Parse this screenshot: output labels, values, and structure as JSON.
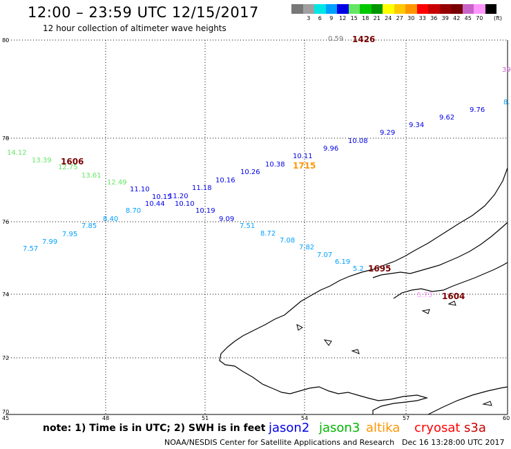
{
  "header": {
    "title": "12:00 – 23:59 UTC 12/15/2017",
    "subtitle": "12 hour collection of altimeter wave heights"
  },
  "scale": {
    "unit": "(ft)",
    "swatches": [
      {
        "label": "",
        "color": "#787878"
      },
      {
        "label": "3",
        "color": "#a0a0a0"
      },
      {
        "label": "6",
        "color": "#00e6e6"
      },
      {
        "label": "9",
        "color": "#00a0ff"
      },
      {
        "label": "12",
        "color": "#0000e6"
      },
      {
        "label": "15",
        "color": "#64e664"
      },
      {
        "label": "18",
        "color": "#00c800"
      },
      {
        "label": "21",
        "color": "#009600"
      },
      {
        "label": "24",
        "color": "#ffff00"
      },
      {
        "label": "27",
        "color": "#ffc800"
      },
      {
        "label": "30",
        "color": "#ff9600"
      },
      {
        "label": "33",
        "color": "#ff0000"
      },
      {
        "label": "36",
        "color": "#c80000"
      },
      {
        "label": "39",
        "color": "#960000"
      },
      {
        "label": "42",
        "color": "#780000"
      },
      {
        "label": "45",
        "color": "#c864c8"
      },
      {
        "label": "70",
        "color": "#ff96ff"
      },
      {
        "label": "",
        "color": "#000000"
      }
    ]
  },
  "axes": {
    "lat_labels": [
      "80",
      "78",
      "76",
      "74",
      "72",
      "70"
    ],
    "lon_labels": [
      "45",
      "48",
      "51",
      "54",
      "57",
      "60"
    ]
  },
  "observations": [
    {
      "v": "14.12",
      "c": "#64e664"
    },
    {
      "v": "13.39",
      "c": "#64e664"
    },
    {
      "v": "12.75",
      "c": "#64e664"
    },
    {
      "v": "13.61",
      "c": "#64e664"
    },
    {
      "v": "12.49",
      "c": "#64e664"
    },
    {
      "v": "11.10",
      "c": "#0000e6"
    },
    {
      "v": "10.15",
      "c": "#0000e6"
    },
    {
      "v": "11.20",
      "c": "#0000e6"
    },
    {
      "v": "10.44",
      "c": "#0000e6"
    },
    {
      "v": "10.10",
      "c": "#0000e6"
    },
    {
      "v": "11.18",
      "c": "#0000e6"
    },
    {
      "v": "10.16",
      "c": "#0000e6"
    },
    {
      "v": "10.26",
      "c": "#0000e6"
    },
    {
      "v": "10.38",
      "c": "#0000e6"
    },
    {
      "v": "10.11",
      "c": "#0000e6"
    },
    {
      "v": "9.96",
      "c": "#0000e6"
    },
    {
      "v": "10.08",
      "c": "#0000e6"
    },
    {
      "v": "9.29",
      "c": "#0000e6"
    },
    {
      "v": "9.34",
      "c": "#0000e6"
    },
    {
      "v": "9.62",
      "c": "#0000e6"
    },
    {
      "v": "9.76",
      "c": "#0000e6"
    },
    {
      "v": "8.",
      "c": "#00a0ff"
    },
    {
      "v": "10.19",
      "c": "#0000e6"
    },
    {
      "v": "9.09",
      "c": "#0000e6"
    },
    {
      "v": "8.70",
      "c": "#00a0ff"
    },
    {
      "v": "8.40",
      "c": "#00a0ff"
    },
    {
      "v": "7.85",
      "c": "#00a0ff"
    },
    {
      "v": "7.95",
      "c": "#00a0ff"
    },
    {
      "v": "7.99",
      "c": "#00a0ff"
    },
    {
      "v": "7.57",
      "c": "#00a0ff"
    },
    {
      "v": "7.51",
      "c": "#00a0ff"
    },
    {
      "v": "8.72",
      "c": "#00a0ff"
    },
    {
      "v": "7.08",
      "c": "#00a0ff"
    },
    {
      "v": "7.82",
      "c": "#00a0ff"
    },
    {
      "v": "7.07",
      "c": "#00a0ff"
    },
    {
      "v": "6.19",
      "c": "#00a0ff"
    },
    {
      "v": "5.2",
      "c": "#00a0ff"
    },
    {
      "v": "0.59",
      "c": "#787878"
    },
    {
      "v": "39",
      "c": "#c864c8"
    },
    {
      "v": "5.73",
      "c": "#ff96ff"
    }
  ],
  "time_stamps": [
    {
      "v": "1426",
      "c": "#780000"
    },
    {
      "v": "1606",
      "c": "#780000"
    },
    {
      "v": "1715",
      "c": "#ff9600"
    },
    {
      "v": "1695",
      "c": "#780000"
    },
    {
      "v": "1604",
      "c": "#780000"
    }
  ],
  "footer": {
    "note": "note:  1) Time is in UTC;  2) SWH is in feet",
    "satellites": [
      {
        "name": "jason2",
        "color": "#0000e6"
      },
      {
        "name": "jason3",
        "color": "#00b400"
      },
      {
        "name": "altika",
        "color": "#ff9600"
      },
      {
        "name": "cryosat",
        "color": "#ff0000"
      },
      {
        "name": "s3a",
        "color": "#c80000"
      }
    ],
    "credit": "NOAA/NESDIS Center for Satellite Applications and Research",
    "generated": "Dec 16 13:28:00 UTC 2017"
  }
}
